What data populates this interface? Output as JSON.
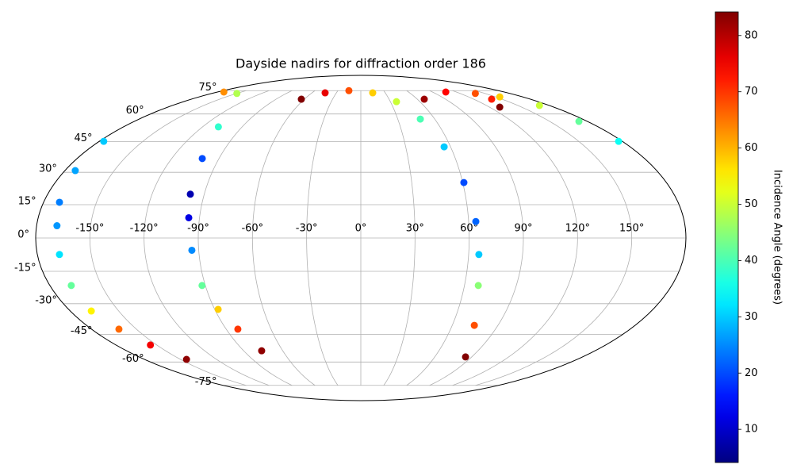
{
  "chart_data": {
    "type": "scatter",
    "projection": "mollweide",
    "title": "Dayside nadirs for diffraction order 186",
    "colorbar_label": "Incidence Angle (degrees)",
    "colormap": "jet",
    "clim": [
      4.1,
      84.2
    ],
    "cticks": [
      10,
      20,
      30,
      40,
      50,
      60,
      70,
      80
    ],
    "grid": true,
    "xlim": [
      -180,
      180
    ],
    "ylim": [
      -90,
      90
    ],
    "xticks": [
      {
        "value": -150,
        "label": "-150°"
      },
      {
        "value": -120,
        "label": "-120°"
      },
      {
        "value": -90,
        "label": "-90°"
      },
      {
        "value": -60,
        "label": "-60°"
      },
      {
        "value": -30,
        "label": "-30°"
      },
      {
        "value": 0,
        "label": "0°"
      },
      {
        "value": 30,
        "label": "30°"
      },
      {
        "value": 60,
        "label": "60°"
      },
      {
        "value": 90,
        "label": "90°"
      },
      {
        "value": 120,
        "label": "120°"
      },
      {
        "value": 150,
        "label": "150°"
      }
    ],
    "yticks": [
      {
        "value": -75,
        "label": "-75°"
      },
      {
        "value": -60,
        "label": "-60°"
      },
      {
        "value": -45,
        "label": "-45°"
      },
      {
        "value": -30,
        "label": "-30°"
      },
      {
        "value": -15,
        "label": "-15°"
      },
      {
        "value": 0,
        "label": "0°"
      },
      {
        "value": 15,
        "label": "15°"
      },
      {
        "value": 30,
        "label": "30°"
      },
      {
        "value": 45,
        "label": "45°"
      },
      {
        "value": 60,
        "label": "60°"
      },
      {
        "value": 75,
        "label": "75°"
      }
    ],
    "series": [
      {
        "lon": [
          -177,
          -173.7,
          -171,
          -168.7,
          -167.7,
          -167.6,
          -167,
          -161.7,
          -154.7,
          -145
        ],
        "lat": [
          45.2,
          30.8,
          16.1,
          5.5,
          -7.4,
          -21.5,
          -33.5,
          -42.4,
          -50.6,
          -58.5
        ],
        "angle": [
          30,
          27,
          24,
          26,
          32,
          42,
          55,
          66,
          75,
          83
        ]
      },
      {
        "lon": [
          -172,
          -149.8,
          -108,
          -100.6,
          -98,
          -96,
          -93.8,
          -91.9,
          -87.9,
          -82.2,
          -76.2
        ],
        "lat": [
          74,
          73,
          52.8,
          36.6,
          19.8,
          9.1,
          -5.5,
          -21.5,
          -32.7,
          -42.4,
          -53.7
        ],
        "angle": [
          63,
          48,
          38,
          20,
          8,
          12,
          25,
          42,
          58,
          70,
          83
        ]
      },
      {
        "lon": [
          -63.2,
          -43.8,
          -15.6,
          14.6,
          36.2,
          48.3,
          55.7,
          60.7,
          64,
          65.7,
          68,
          74.5,
          85
        ],
        "lat": [
          69.1,
          73.4,
          75,
          73.4,
          67.5,
          57.1,
          42.4,
          25.2,
          7.4,
          -7.4,
          -21.5,
          -40.5,
          -57.1
        ],
        "angle": [
          84,
          76,
          68,
          58,
          50,
          40,
          30,
          20,
          22,
          30,
          45,
          68,
          84
        ]
      },
      {
        "lon": [
          67.4,
          106.7,
          138.4,
          139,
          129.6
        ],
        "lat": [
          69.1,
          74,
          73,
          69.1,
          64.1
        ],
        "angle": [
          82,
          74,
          68,
          72,
          84
        ]
      },
      {
        "lon": [
          154.6,
          170.6,
          173.2,
          177.5
        ],
        "lat": [
          70.6,
          65.1,
          55.8,
          45.2
        ],
        "angle": [
          58,
          50,
          42,
          35
        ]
      }
    ]
  }
}
